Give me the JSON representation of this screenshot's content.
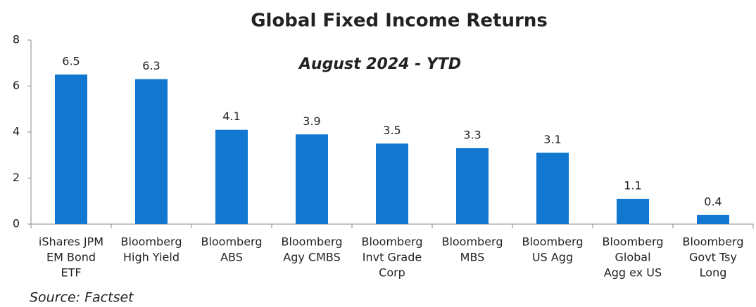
{
  "chart_data": {
    "type": "bar",
    "title": "Global Fixed Income Returns",
    "subtitle": "August 2024 - YTD",
    "source": "Source: Factset",
    "categories": [
      [
        "iShares JPM",
        "EM Bond",
        "ETF"
      ],
      [
        "Bloomberg",
        "High Yield"
      ],
      [
        "Bloomberg",
        "ABS"
      ],
      [
        "Bloomberg",
        "Agy CMBS"
      ],
      [
        "Bloomberg",
        "Invt Grade",
        "Corp"
      ],
      [
        "Bloomberg",
        "MBS"
      ],
      [
        "Bloomberg",
        "US Agg"
      ],
      [
        "Bloomberg",
        "Global",
        "Agg ex US"
      ],
      [
        "Bloomberg",
        "Govt Tsy",
        "Long"
      ]
    ],
    "values": [
      6.5,
      6.3,
      4.1,
      3.9,
      3.5,
      3.3,
      3.1,
      1.1,
      0.4
    ],
    "color": "#1177d1",
    "ylim": [
      0,
      8
    ],
    "yticks": [
      0,
      2,
      4,
      6,
      8
    ],
    "grid": false
  }
}
